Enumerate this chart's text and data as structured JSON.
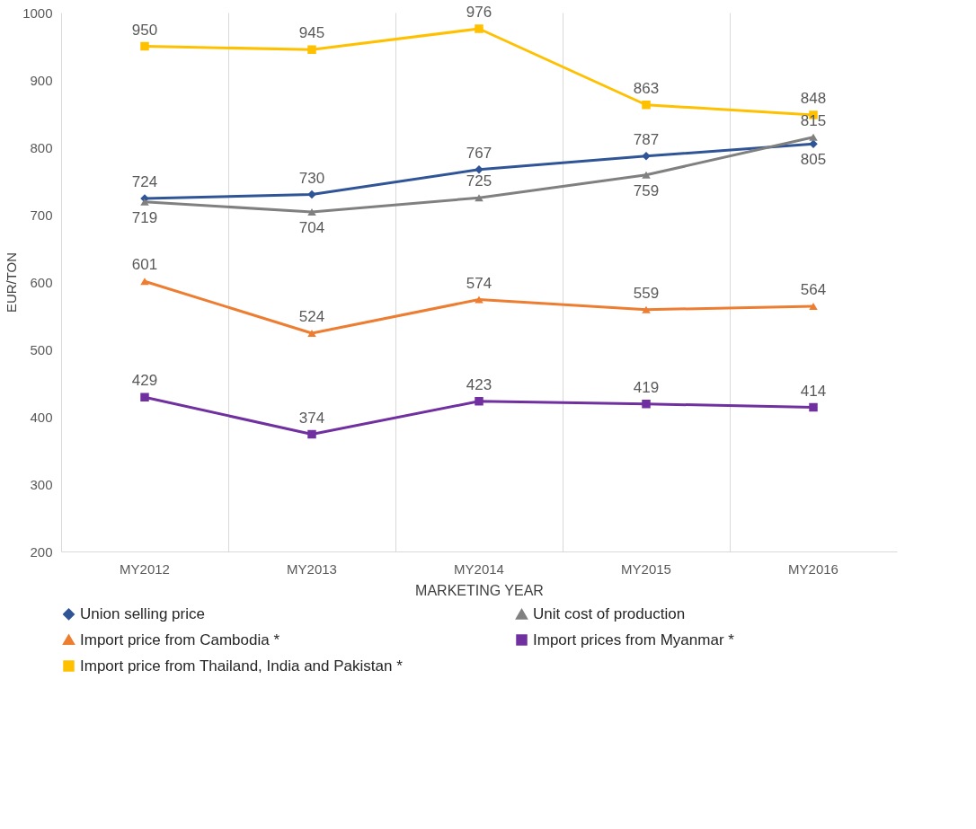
{
  "chart_data": {
    "type": "line",
    "xlabel": "MARKETING YEAR",
    "ylabel": "EUR/TON",
    "categories": [
      "MY2012",
      "MY2013",
      "MY2014",
      "MY2015",
      "MY2016"
    ],
    "series": [
      {
        "name": "Union selling price",
        "color": "#2f5597",
        "marker": "diamond",
        "values": [
          724,
          730,
          767,
          787,
          805
        ]
      },
      {
        "name": "Unit cost of production",
        "color": "#808080",
        "marker": "triangle",
        "values": [
          719,
          704,
          725,
          759,
          815
        ]
      },
      {
        "name": "Import price from Cambodia *",
        "color": "#ed7d31",
        "marker": "triangle",
        "values": [
          601,
          524,
          574,
          559,
          564
        ]
      },
      {
        "name": "Import prices from Myanmar *",
        "color": "#7030a0",
        "marker": "square",
        "values": [
          429,
          374,
          423,
          419,
          414
        ]
      },
      {
        "name": "Import price from Thailand, India and Pakistan *",
        "color": "#ffc000",
        "marker": "square",
        "values": [
          950,
          945,
          976,
          863,
          848
        ]
      }
    ],
    "ylim": [
      200,
      1000
    ],
    "yticks": [
      200,
      300,
      400,
      500,
      600,
      700,
      800,
      900,
      1000
    ],
    "grid": "x",
    "legend": "bottom",
    "data_labels": true,
    "line_style": "solid"
  }
}
